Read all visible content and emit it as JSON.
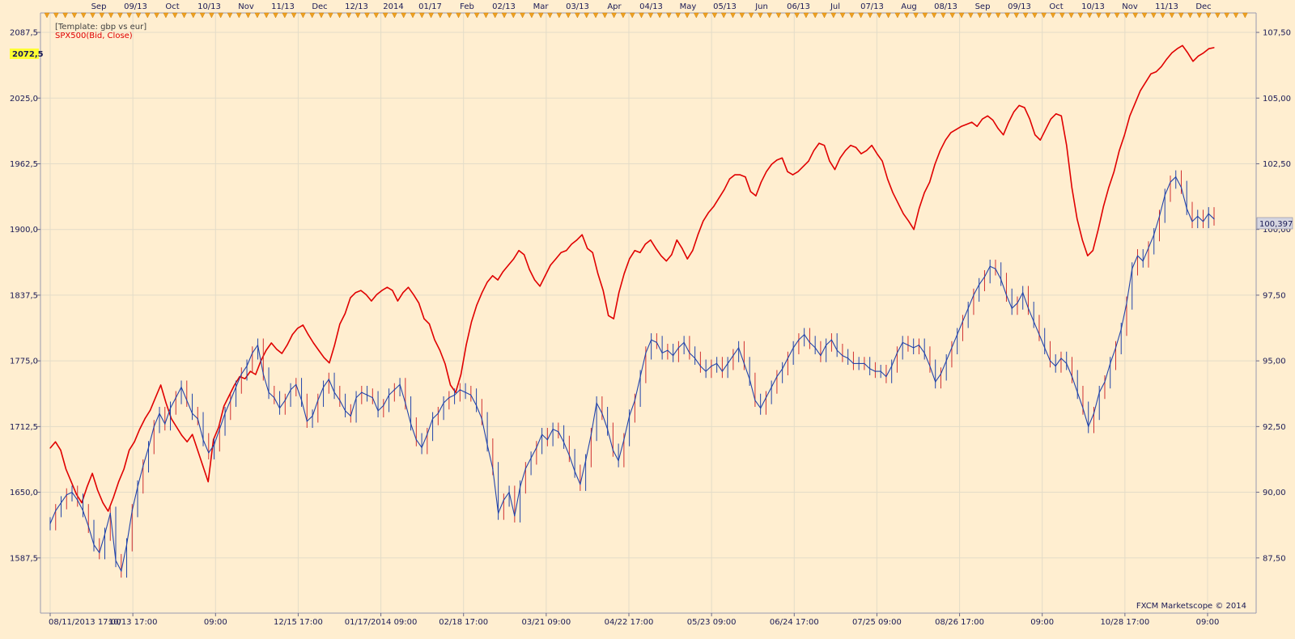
{
  "chart_data": {
    "type": "line",
    "template_label": "[Template: gbp vs eur]",
    "credit": "FXCM Marketscope © 2014",
    "left_axis": {
      "ticks": [
        "2087,5",
        "2025,0",
        "1962,5",
        "1900,0",
        "1837,5",
        "1775,0",
        "1712,5",
        "1650,0",
        "1587,5"
      ],
      "tick_values": [
        2087.5,
        2025,
        1962.5,
        1900,
        1837.5,
        1775,
        1712.5,
        1650,
        1587.5
      ],
      "range": [
        1535,
        2106
      ],
      "current_label": "2072,5",
      "current_value": 2072.5
    },
    "right_axis": {
      "ticks": [
        "107,50",
        "105,00",
        "102,50",
        "100,00",
        "97,50",
        "95,00",
        "92,50",
        "90,00",
        "87,50"
      ],
      "tick_values": [
        107.5,
        105,
        102.5,
        100,
        97.5,
        95,
        92.5,
        90,
        87.5
      ],
      "range": [
        85.4,
        108.24
      ],
      "current_label": "100,397",
      "current_value": 100.397
    },
    "top_axis": {
      "labels": [
        "Sep",
        "09/13",
        "Oct",
        "10/13",
        "Nov",
        "11/13",
        "Dec",
        "12/13",
        "2014",
        "01/17",
        "Feb",
        "02/13",
        "Mar",
        "03/13",
        "Apr",
        "04/13",
        "May",
        "05/13",
        "Jun",
        "06/13",
        "Jul",
        "07/13",
        "Aug",
        "08/13",
        "Sep",
        "09/13",
        "Oct",
        "10/13",
        "Nov",
        "11/13",
        "Dec"
      ]
    },
    "bottom_axis": {
      "labels": [
        "08/11/2013 17:00",
        "10/13 17:00",
        "09:00",
        "12/15 17:00",
        "01/17/2014 09:00",
        "02/18 17:00",
        "03/21 09:00",
        "04/22 17:00",
        "05/23 09:00",
        "06/24 17:00",
        "07/25 09:00",
        "08/26 17:00",
        "09:00",
        "10/28 17:00",
        "09:00"
      ]
    },
    "series": [
      {
        "name": "SPX500(Bid, Close)",
        "axis": "left",
        "color": "#e00000",
        "values": [
          1692,
          1698,
          1690,
          1672,
          1660,
          1648,
          1640,
          1655,
          1668,
          1652,
          1640,
          1632,
          1645,
          1660,
          1672,
          1690,
          1698,
          1710,
          1720,
          1728,
          1740,
          1752,
          1735,
          1720,
          1712,
          1704,
          1698,
          1705,
          1690,
          1675,
          1660,
          1700,
          1712,
          1732,
          1742,
          1752,
          1760,
          1758,
          1765,
          1762,
          1775,
          1785,
          1792,
          1786,
          1782,
          1790,
          1800,
          1806,
          1809,
          1800,
          1792,
          1785,
          1778,
          1773,
          1790,
          1810,
          1820,
          1835,
          1840,
          1842,
          1838,
          1832,
          1838,
          1842,
          1845,
          1842,
          1832,
          1840,
          1845,
          1838,
          1830,
          1815,
          1810,
          1795,
          1785,
          1772,
          1752,
          1745,
          1762,
          1790,
          1812,
          1828,
          1840,
          1850,
          1856,
          1852,
          1860,
          1866,
          1872,
          1880,
          1876,
          1862,
          1852,
          1846,
          1856,
          1866,
          1872,
          1878,
          1880,
          1886,
          1890,
          1895,
          1882,
          1878,
          1858,
          1842,
          1818,
          1815,
          1840,
          1858,
          1872,
          1880,
          1878,
          1886,
          1890,
          1882,
          1875,
          1870,
          1876,
          1890,
          1882,
          1872,
          1880,
          1895,
          1908,
          1916,
          1922,
          1930,
          1938,
          1948,
          1952,
          1952,
          1950,
          1936,
          1932,
          1945,
          1955,
          1962,
          1966,
          1968,
          1955,
          1952,
          1955,
          1960,
          1965,
          1975,
          1982,
          1980,
          1965,
          1957,
          1968,
          1975,
          1980,
          1978,
          1972,
          1975,
          1980,
          1972,
          1965,
          1948,
          1935,
          1925,
          1915,
          1908,
          1900,
          1920,
          1935,
          1945,
          1962,
          1975,
          1985,
          1992,
          1995,
          1998,
          2000,
          2002,
          1998,
          2005,
          2008,
          2004,
          1996,
          1990,
          2002,
          2012,
          2018,
          2016,
          2005,
          1990,
          1985,
          1995,
          2005,
          2010,
          2008,
          1980,
          1940,
          1910,
          1890,
          1875,
          1880,
          1900,
          1922,
          1940,
          1955,
          1975,
          1990,
          2008,
          2020,
          2032,
          2040,
          2048,
          2050,
          2055,
          2062,
          2068,
          2072,
          2075,
          2068,
          2060,
          2065,
          2068,
          2072,
          2073
        ]
      },
      {
        "name": "GBP vs EUR",
        "axis": "right",
        "color": "#2244aa",
        "values": [
          88.8,
          89.3,
          89.6,
          89.9,
          90.0,
          89.7,
          89.3,
          88.7,
          88.0,
          87.7,
          88.4,
          89.2,
          87.4,
          87.0,
          88.0,
          89.3,
          90.2,
          91.0,
          91.7,
          92.5,
          93.0,
          92.6,
          93.2,
          93.6,
          94.0,
          93.5,
          93.0,
          92.8,
          92.0,
          91.5,
          91.8,
          92.4,
          93.0,
          93.5,
          94.0,
          94.5,
          94.8,
          95.3,
          95.6,
          94.5,
          93.8,
          93.6,
          93.2,
          93.5,
          93.9,
          94.1,
          93.5,
          92.7,
          92.9,
          93.5,
          94.0,
          94.3,
          93.8,
          93.5,
          93.1,
          92.9,
          93.6,
          93.8,
          93.7,
          93.6,
          93.1,
          93.3,
          93.7,
          93.9,
          94.1,
          93.4,
          92.6,
          92.0,
          91.7,
          92.2,
          92.8,
          93.0,
          93.4,
          93.6,
          93.7,
          93.9,
          93.8,
          93.7,
          93.3,
          92.8,
          91.8,
          90.9,
          89.2,
          89.7,
          90.0,
          89.1,
          90.2,
          90.9,
          91.3,
          91.7,
          92.2,
          92.0,
          92.4,
          92.3,
          91.9,
          91.4,
          90.8,
          90.3,
          91.2,
          92.2,
          93.4,
          93.0,
          92.4,
          91.6,
          91.2,
          92.0,
          92.9,
          93.5,
          94.4,
          95.3,
          95.8,
          95.7,
          95.3,
          95.4,
          95.2,
          95.5,
          95.7,
          95.3,
          95.1,
          94.8,
          94.6,
          94.8,
          94.9,
          94.6,
          94.9,
          95.2,
          95.5,
          94.9,
          94.3,
          93.5,
          93.2,
          93.6,
          94.0,
          94.4,
          94.7,
          95.1,
          95.5,
          95.8,
          96.0,
          95.7,
          95.5,
          95.2,
          95.6,
          95.8,
          95.4,
          95.2,
          95.1,
          94.9,
          94.9,
          94.9,
          94.7,
          94.6,
          94.6,
          94.4,
          94.8,
          95.3,
          95.7,
          95.6,
          95.5,
          95.6,
          95.3,
          94.8,
          94.2,
          94.5,
          95.0,
          95.5,
          96.0,
          96.5,
          97.0,
          97.5,
          97.9,
          98.2,
          98.6,
          98.5,
          98.1,
          97.5,
          97.0,
          97.2,
          97.6,
          97.0,
          96.5,
          96.0,
          95.5,
          95.0,
          94.8,
          95.1,
          94.9,
          94.4,
          93.8,
          93.2,
          92.5,
          93.0,
          93.8,
          94.2,
          94.9,
          95.5,
          96.2,
          97.2,
          98.5,
          99.0,
          98.8,
          99.3,
          99.8,
          100.5,
          101.3,
          101.8,
          102.0,
          101.6,
          100.8,
          100.3,
          100.5,
          100.3,
          100.6,
          100.4
        ]
      }
    ]
  }
}
